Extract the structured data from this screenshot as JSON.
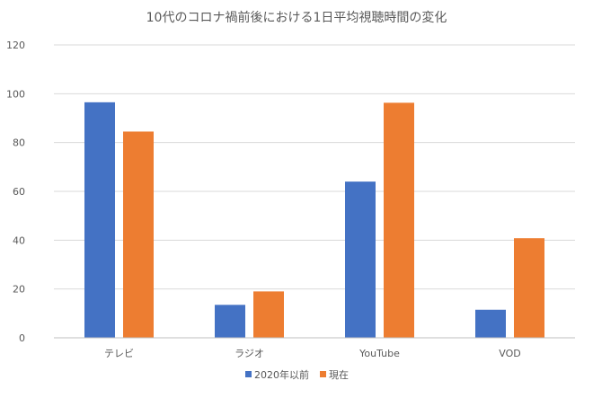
{
  "chart_data": {
    "type": "bar",
    "title": "10代のコロナ禍前後における1日平均視聴時間の変化",
    "categories": [
      "テレビ",
      "ラジオ",
      "YouTube",
      "VOD"
    ],
    "series": [
      {
        "name": "2020年以前",
        "color": "#4472c4",
        "values": [
          96.5,
          13.5,
          64,
          11.5
        ]
      },
      {
        "name": "現在",
        "color": "#ed7d31",
        "values": [
          84.5,
          19,
          96.3,
          40.8
        ]
      }
    ],
    "ylim": [
      0,
      120
    ],
    "yticks": [
      0,
      20,
      40,
      60,
      80,
      100,
      120
    ],
    "xlabel": "",
    "ylabel": "",
    "grid": true,
    "legend_position": "bottom"
  }
}
